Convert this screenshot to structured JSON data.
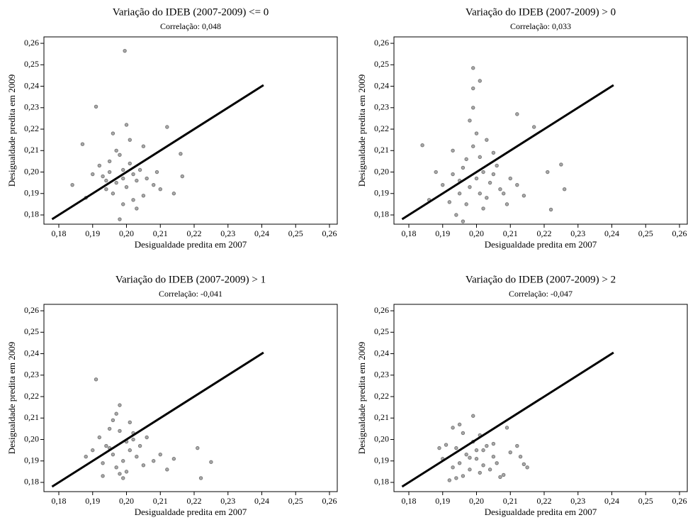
{
  "chart_data": [
    {
      "type": "scatter",
      "title": "Variação do IDEB (2007-2009) <= 0",
      "subtitle": "Correlação: 0,048",
      "xlabel": "Desigualdade predita em 2007",
      "ylabel": "Desigualdade predita em 2009",
      "color": "#777777",
      "x": [
        0.199,
        0.1995,
        0.191,
        0.212,
        0.216,
        0.2165,
        0.214,
        0.187,
        0.184,
        0.198,
        0.195,
        0.197,
        0.2,
        0.202,
        0.204,
        0.196,
        0.193,
        0.201,
        0.203,
        0.198,
        0.194,
        0.206,
        0.208,
        0.19,
        0.199,
        0.205,
        0.197,
        0.192,
        0.201,
        0.209,
        0.196,
        0.2,
        0.203,
        0.188,
        0.21,
        0.195,
        0.202,
        0.199,
        0.205,
        0.194
      ],
      "y": [
        0.197,
        0.2565,
        0.2305,
        0.221,
        0.2085,
        0.198,
        0.19,
        0.213,
        0.194,
        0.178,
        0.2,
        0.195,
        0.193,
        0.199,
        0.201,
        0.19,
        0.198,
        0.204,
        0.196,
        0.208,
        0.192,
        0.197,
        0.194,
        0.199,
        0.185,
        0.189,
        0.21,
        0.203,
        0.215,
        0.2,
        0.218,
        0.222,
        0.183,
        0.188,
        0.192,
        0.205,
        0.187,
        0.201,
        0.212,
        0.196
      ],
      "line": {
        "x": [
          0.178,
          0.2405
        ],
        "y": [
          0.178,
          0.2405
        ],
        "color": "#000000"
      },
      "xlim": [
        0.1756,
        0.2623
      ],
      "ylim": [
        0.1757,
        0.263
      ],
      "xticks": [
        {
          "value": 0.18,
          "label": "0,18"
        },
        {
          "value": 0.19,
          "label": "0,19"
        },
        {
          "value": 0.2,
          "label": "0,20"
        },
        {
          "value": 0.21,
          "label": "0,21"
        },
        {
          "value": 0.22,
          "label": "0,22"
        },
        {
          "value": 0.23,
          "label": "0,23"
        },
        {
          "value": 0.24,
          "label": "0,24"
        },
        {
          "value": 0.25,
          "label": "0,25"
        },
        {
          "value": 0.26,
          "label": "0,26"
        }
      ],
      "yticks": [
        {
          "value": 0.18,
          "label": "0,18"
        },
        {
          "value": 0.19,
          "label": "0,19"
        },
        {
          "value": 0.2,
          "label": "0,20"
        },
        {
          "value": 0.21,
          "label": "0,21"
        },
        {
          "value": 0.22,
          "label": "0,22"
        },
        {
          "value": 0.23,
          "label": "0,23"
        },
        {
          "value": 0.24,
          "label": "0,24"
        },
        {
          "value": 0.25,
          "label": "0,25"
        },
        {
          "value": 0.26,
          "label": "0,26"
        }
      ]
    },
    {
      "type": "scatter",
      "title": "Variação do IDEB (2007-2009) > 0",
      "subtitle": "Correlação: 0,033",
      "xlabel": "Desigualdade predita em 2007",
      "ylabel": "Desigualdade predita em 2009",
      "color": "#777777",
      "x": [
        0.199,
        0.201,
        0.199,
        0.184,
        0.212,
        0.217,
        0.221,
        0.225,
        0.226,
        0.222,
        0.196,
        0.2,
        0.198,
        0.202,
        0.195,
        0.204,
        0.193,
        0.206,
        0.197,
        0.201,
        0.19,
        0.208,
        0.199,
        0.203,
        0.196,
        0.192,
        0.21,
        0.205,
        0.194,
        0.2,
        0.202,
        0.198,
        0.188,
        0.207,
        0.212,
        0.195,
        0.203,
        0.201,
        0.197,
        0.186,
        0.214,
        0.199,
        0.205,
        0.193,
        0.209
      ],
      "y": [
        0.2485,
        0.2425,
        0.239,
        0.2125,
        0.227,
        0.221,
        0.2,
        0.2035,
        0.192,
        0.1825,
        0.177,
        0.197,
        0.193,
        0.2,
        0.19,
        0.195,
        0.199,
        0.203,
        0.185,
        0.207,
        0.194,
        0.19,
        0.212,
        0.188,
        0.202,
        0.186,
        0.197,
        0.209,
        0.18,
        0.218,
        0.183,
        0.224,
        0.2,
        0.192,
        0.194,
        0.196,
        0.215,
        0.19,
        0.206,
        0.187,
        0.189,
        0.23,
        0.199,
        0.21,
        0.185
      ],
      "line": {
        "x": [
          0.178,
          0.2405
        ],
        "y": [
          0.178,
          0.2405
        ],
        "color": "#000000"
      },
      "xlim": [
        0.1756,
        0.2623
      ],
      "ylim": [
        0.1757,
        0.263
      ],
      "xticks": [
        {
          "value": 0.18,
          "label": "0,18"
        },
        {
          "value": 0.19,
          "label": "0,19"
        },
        {
          "value": 0.2,
          "label": "0,20"
        },
        {
          "value": 0.21,
          "label": "0,21"
        },
        {
          "value": 0.22,
          "label": "0,22"
        },
        {
          "value": 0.23,
          "label": "0,23"
        },
        {
          "value": 0.24,
          "label": "0,24"
        },
        {
          "value": 0.25,
          "label": "0,25"
        },
        {
          "value": 0.26,
          "label": "0,26"
        }
      ],
      "yticks": [
        {
          "value": 0.18,
          "label": "0,18"
        },
        {
          "value": 0.19,
          "label": "0,19"
        },
        {
          "value": 0.2,
          "label": "0,20"
        },
        {
          "value": 0.21,
          "label": "0,21"
        },
        {
          "value": 0.22,
          "label": "0,22"
        },
        {
          "value": 0.23,
          "label": "0,23"
        },
        {
          "value": 0.24,
          "label": "0,24"
        },
        {
          "value": 0.25,
          "label": "0,25"
        },
        {
          "value": 0.26,
          "label": "0,26"
        }
      ]
    },
    {
      "type": "scatter",
      "title": "Variação do IDEB (2007-2009) > 1",
      "subtitle": "Correlação: -0,041",
      "xlabel": "Desigualdade predita em 2007",
      "ylabel": "Desigualdade predita em 2009",
      "color": "#777777",
      "x": [
        0.191,
        0.221,
        0.225,
        0.222,
        0.198,
        0.196,
        0.199,
        0.201,
        0.194,
        0.197,
        0.203,
        0.192,
        0.2,
        0.205,
        0.195,
        0.198,
        0.19,
        0.208,
        0.202,
        0.196,
        0.193,
        0.21,
        0.199,
        0.204,
        0.197,
        0.188,
        0.212,
        0.201,
        0.195,
        0.206,
        0.2,
        0.214,
        0.193,
        0.202,
        0.198
      ],
      "y": [
        0.228,
        0.196,
        0.1895,
        0.182,
        0.216,
        0.193,
        0.19,
        0.195,
        0.197,
        0.187,
        0.192,
        0.201,
        0.199,
        0.188,
        0.205,
        0.184,
        0.195,
        0.19,
        0.203,
        0.209,
        0.189,
        0.193,
        0.182,
        0.197,
        0.212,
        0.192,
        0.186,
        0.208,
        0.196,
        0.201,
        0.185,
        0.191,
        0.183,
        0.2,
        0.204
      ],
      "line": {
        "x": [
          0.178,
          0.2405
        ],
        "y": [
          0.178,
          0.2405
        ],
        "color": "#000000"
      },
      "xlim": [
        0.1756,
        0.2623
      ],
      "ylim": [
        0.1757,
        0.263
      ],
      "xticks": [
        {
          "value": 0.18,
          "label": "0,18"
        },
        {
          "value": 0.19,
          "label": "0,19"
        },
        {
          "value": 0.2,
          "label": "0,20"
        },
        {
          "value": 0.21,
          "label": "0,21"
        },
        {
          "value": 0.22,
          "label": "0,22"
        },
        {
          "value": 0.23,
          "label": "0,23"
        },
        {
          "value": 0.24,
          "label": "0,24"
        },
        {
          "value": 0.25,
          "label": "0,25"
        },
        {
          "value": 0.26,
          "label": "0,26"
        }
      ],
      "yticks": [
        {
          "value": 0.18,
          "label": "0,18"
        },
        {
          "value": 0.19,
          "label": "0,19"
        },
        {
          "value": 0.2,
          "label": "0,20"
        },
        {
          "value": 0.21,
          "label": "0,21"
        },
        {
          "value": 0.22,
          "label": "0,22"
        },
        {
          "value": 0.23,
          "label": "0,23"
        },
        {
          "value": 0.24,
          "label": "0,24"
        },
        {
          "value": 0.25,
          "label": "0,25"
        },
        {
          "value": 0.26,
          "label": "0,26"
        }
      ]
    },
    {
      "type": "scatter",
      "title": "Variação do IDEB (2007-2009) > 2",
      "subtitle": "Correlação: -0,047",
      "xlabel": "Desigualdade predita em 2007",
      "ylabel": "Desigualdade predita em 2009",
      "color": "#777777",
      "x": [
        0.193,
        0.195,
        0.199,
        0.201,
        0.209,
        0.212,
        0.213,
        0.214,
        0.215,
        0.189,
        0.19,
        0.191,
        0.192,
        0.193,
        0.194,
        0.195,
        0.196,
        0.197,
        0.198,
        0.199,
        0.2,
        0.201,
        0.202,
        0.203,
        0.204,
        0.205,
        0.206,
        0.207,
        0.208,
        0.21,
        0.196,
        0.198,
        0.202,
        0.194,
        0.2,
        0.205
      ],
      "y": [
        0.2055,
        0.207,
        0.211,
        0.202,
        0.2055,
        0.197,
        0.192,
        0.1885,
        0.187,
        0.196,
        0.191,
        0.1975,
        0.181,
        0.187,
        0.196,
        0.189,
        0.183,
        0.193,
        0.186,
        0.199,
        0.191,
        0.1845,
        0.195,
        0.197,
        0.186,
        0.192,
        0.189,
        0.1825,
        0.1835,
        0.194,
        0.203,
        0.1915,
        0.188,
        0.182,
        0.195,
        0.198
      ],
      "line": {
        "x": [
          0.178,
          0.2405
        ],
        "y": [
          0.178,
          0.2405
        ],
        "color": "#000000"
      },
      "xlim": [
        0.1756,
        0.2623
      ],
      "ylim": [
        0.1757,
        0.263
      ],
      "xticks": [
        {
          "value": 0.18,
          "label": "0,18"
        },
        {
          "value": 0.19,
          "label": "0,19"
        },
        {
          "value": 0.2,
          "label": "0,20"
        },
        {
          "value": 0.21,
          "label": "0,21"
        },
        {
          "value": 0.22,
          "label": "0,22"
        },
        {
          "value": 0.23,
          "label": "0,23"
        },
        {
          "value": 0.24,
          "label": "0,24"
        },
        {
          "value": 0.25,
          "label": "0,25"
        },
        {
          "value": 0.26,
          "label": "0,26"
        }
      ],
      "yticks": [
        {
          "value": 0.18,
          "label": "0,18"
        },
        {
          "value": 0.19,
          "label": "0,19"
        },
        {
          "value": 0.2,
          "label": "0,20"
        },
        {
          "value": 0.21,
          "label": "0,21"
        },
        {
          "value": 0.22,
          "label": "0,22"
        },
        {
          "value": 0.23,
          "label": "0,23"
        },
        {
          "value": 0.24,
          "label": "0,24"
        },
        {
          "value": 0.25,
          "label": "0,25"
        },
        {
          "value": 0.26,
          "label": "0,26"
        }
      ]
    }
  ]
}
